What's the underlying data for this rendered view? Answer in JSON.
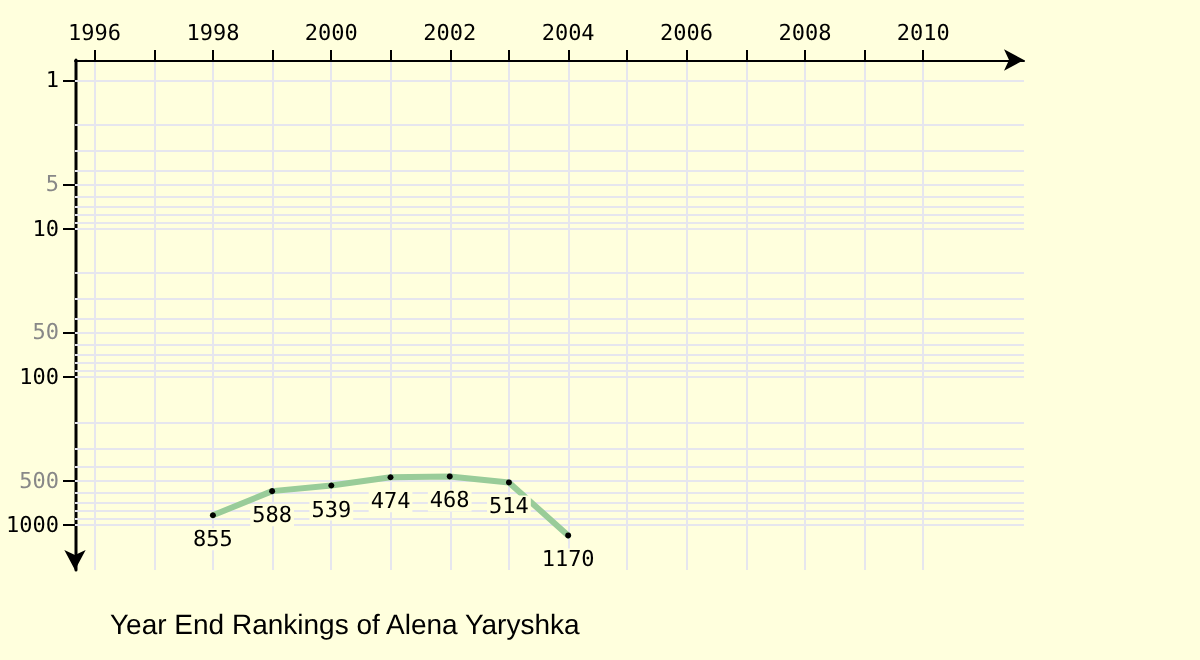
{
  "chart_data": {
    "type": "line",
    "title": "Year End Rankings of Alena Yaryshka",
    "x": [
      1998,
      1999,
      2000,
      2001,
      2002,
      2003,
      2004
    ],
    "series": [
      {
        "color": "#99cc99",
        "values": [
          855,
          588,
          539,
          474,
          468,
          514,
          1170
        ]
      }
    ],
    "data_labels": true,
    "marker": "circle",
    "line_style": "solid",
    "log": "y",
    "grid": true,
    "xlim": [
      1995.67,
      2011.7
    ],
    "xticks": [
      1996,
      {
        "value": 1997,
        "label": null
      },
      1998,
      {
        "value": 1999,
        "label": null
      },
      2000,
      {
        "value": 2001,
        "label": null
      },
      2002,
      {
        "value": 2003,
        "label": null
      },
      2004,
      {
        "value": 2005,
        "label": null
      },
      2006,
      {
        "value": 2007,
        "label": null
      },
      2008,
      {
        "value": 2009,
        "label": null
      },
      2010
    ],
    "ylim": [
      2000,
      0.73
    ],
    "yticks": [
      1,
      {
        "value": 2,
        "label": null
      },
      {
        "value": 3,
        "label": null
      },
      {
        "value": 4,
        "label": null
      },
      5,
      {
        "value": 6,
        "label": null
      },
      {
        "value": 7,
        "label": null
      },
      {
        "value": 8,
        "label": null
      },
      {
        "value": 9,
        "label": null
      },
      10,
      {
        "value": 20,
        "label": null
      },
      {
        "value": 30,
        "label": null
      },
      {
        "value": 40,
        "label": null
      },
      50,
      {
        "value": 60,
        "label": null
      },
      {
        "value": 70,
        "label": null
      },
      {
        "value": 80,
        "label": null
      },
      {
        "value": 90,
        "label": null
      },
      100,
      {
        "value": 200,
        "label": null
      },
      {
        "value": 300,
        "label": null
      },
      {
        "value": 400,
        "label": null
      },
      500,
      {
        "value": 600,
        "label": null
      },
      {
        "value": 700,
        "label": null
      },
      {
        "value": 800,
        "label": null
      },
      {
        "value": 900,
        "label": null
      },
      1000
    ]
  }
}
